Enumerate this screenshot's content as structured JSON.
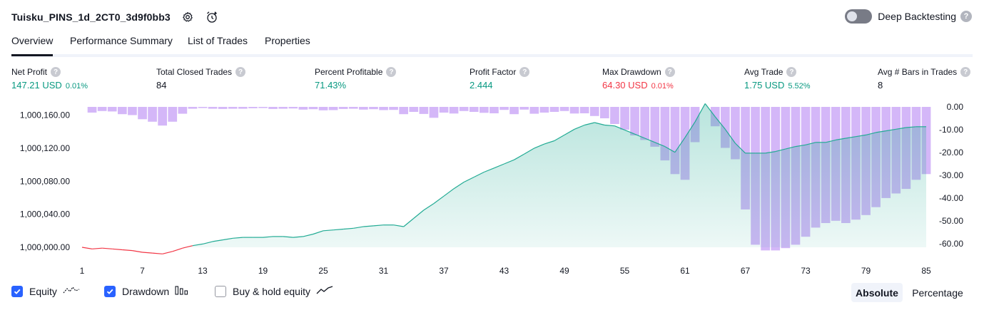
{
  "header": {
    "title": "Tuisku_PINS_1d_2CT0_3d9f0bb3",
    "deep_backtesting_label": "Deep Backtesting",
    "help_glyph": "?"
  },
  "tabs": [
    {
      "label": "Overview",
      "active": true
    },
    {
      "label": "Performance Summary",
      "active": false
    },
    {
      "label": "List of Trades",
      "active": false
    },
    {
      "label": "Properties",
      "active": false
    }
  ],
  "metrics": {
    "net_profit": {
      "label": "Net Profit",
      "value": "147.21 USD",
      "pct": "0.01%"
    },
    "total_closed_trades": {
      "label": "Total Closed Trades",
      "value": "84"
    },
    "percent_profitable": {
      "label": "Percent Profitable",
      "value": "71.43%"
    },
    "profit_factor": {
      "label": "Profit Factor",
      "value": "2.444"
    },
    "max_drawdown": {
      "label": "Max Drawdown",
      "value": "64.30 USD",
      "pct": "0.01%"
    },
    "avg_trade": {
      "label": "Avg Trade",
      "value": "1.75 USD",
      "pct": "5.52%"
    },
    "avg_bars": {
      "label": "Avg # Bars in Trades",
      "value": "8"
    }
  },
  "legend": {
    "equity": {
      "label": "Equity",
      "checked": true
    },
    "drawdown": {
      "label": "Drawdown",
      "checked": true
    },
    "buy_hold": {
      "label": "Buy & hold equity",
      "checked": false
    }
  },
  "view_toggle": {
    "absolute": "Absolute",
    "percentage": "Percentage",
    "selected": "Absolute"
  },
  "colors": {
    "positive": "#089981",
    "negative": "#f23645",
    "equity_line_up": "#22ab94",
    "equity_line_down": "#f23645",
    "drawdown_bar": "#c59ff5",
    "checkbox": "#2962ff"
  },
  "chart_data": {
    "type": "area",
    "x_ticks": [
      "1",
      "7",
      "13",
      "19",
      "25",
      "31",
      "37",
      "43",
      "49",
      "55",
      "61",
      "67",
      "73",
      "79",
      "85"
    ],
    "x_range": [
      1,
      85
    ],
    "y_left": {
      "ticks": [
        "1,000,000.00",
        "1,000,040.00",
        "1,000,080.00",
        "1,000,120.00",
        "1,000,160.00"
      ],
      "range": [
        1000000,
        1000170
      ]
    },
    "y_right": {
      "ticks": [
        "0.00",
        "-10.00",
        "-20.00",
        "-30.00",
        "-40.00",
        "-50.00",
        "-60.00"
      ],
      "range": [
        -61,
        0
      ]
    },
    "series": [
      {
        "name": "Equity",
        "x": [
          1,
          2,
          3,
          4,
          5,
          6,
          7,
          8,
          9,
          10,
          11,
          12,
          13,
          14,
          15,
          16,
          17,
          18,
          19,
          20,
          21,
          22,
          23,
          24,
          25,
          26,
          27,
          28,
          29,
          30,
          31,
          32,
          33,
          34,
          35,
          36,
          37,
          38,
          39,
          40,
          41,
          42,
          43,
          44,
          45,
          46,
          47,
          48,
          49,
          50,
          51,
          52,
          53,
          54,
          55,
          56,
          57,
          58,
          59,
          60,
          61,
          62,
          63,
          64,
          65,
          66,
          67,
          68,
          69,
          70,
          71,
          72,
          73,
          74,
          75,
          76,
          77,
          78,
          79,
          80,
          81,
          82,
          83,
          84,
          85
        ],
        "values": [
          1000000,
          999998,
          999999,
          999998,
          999997,
          999996,
          999994,
          999993,
          999992,
          999995,
          999999,
          1000002,
          1000004,
          1000007,
          1000009,
          1000011,
          1000012,
          1000012,
          1000012,
          1000013,
          1000013,
          1000012,
          1000013,
          1000016,
          1000020,
          1000021,
          1000022,
          1000023,
          1000025,
          1000026,
          1000027,
          1000027,
          1000025,
          1000035,
          1000045,
          1000053,
          1000062,
          1000071,
          1000079,
          1000085,
          1000091,
          1000096,
          1000101,
          1000106,
          1000113,
          1000120,
          1000125,
          1000129,
          1000136,
          1000143,
          1000148,
          1000151,
          1000148,
          1000147,
          1000142,
          1000137,
          1000132,
          1000127,
          1000122,
          1000115,
          1000133,
          1000152,
          1000174,
          1000158,
          1000143,
          1000126,
          1000114,
          1000114,
          1000114,
          1000116,
          1000119,
          1000122,
          1000124,
          1000127,
          1000127,
          1000130,
          1000132,
          1000134,
          1000136,
          1000139,
          1000141,
          1000143,
          1000145,
          1000146,
          1000146
        ]
      },
      {
        "name": "Drawdown",
        "x": [
          1,
          2,
          3,
          4,
          5,
          6,
          7,
          8,
          9,
          10,
          11,
          12,
          13,
          14,
          15,
          16,
          17,
          18,
          19,
          20,
          21,
          22,
          23,
          24,
          25,
          26,
          27,
          28,
          29,
          30,
          31,
          32,
          33,
          34,
          35,
          36,
          37,
          38,
          39,
          40,
          41,
          42,
          43,
          44,
          45,
          46,
          47,
          48,
          49,
          50,
          51,
          52,
          53,
          54,
          55,
          56,
          57,
          58,
          59,
          60,
          61,
          62,
          63,
          64,
          65,
          66,
          67,
          68,
          69,
          70,
          71,
          72,
          73,
          74,
          75,
          76,
          77,
          78,
          79,
          80,
          81,
          82,
          83,
          84,
          85
        ],
        "values": [
          0,
          -2.5,
          -1.8,
          -2.0,
          -3.2,
          -3.6,
          -5.4,
          -6.5,
          -8.2,
          -6.5,
          -3.0,
          -0.8,
          -0.5,
          -0.8,
          -0.9,
          -0.8,
          -0.8,
          -0.6,
          -0.5,
          -0.9,
          -0.8,
          -0.7,
          -1.2,
          -1.0,
          -1.5,
          -1.4,
          -0.9,
          -0.8,
          -1.2,
          -1.0,
          -1.4,
          -1.3,
          -3.2,
          -2.2,
          -3.1,
          -4.8,
          -2.5,
          -2.9,
          -1.8,
          -2.2,
          -2.6,
          -2.8,
          -1.3,
          -3.2,
          -1.2,
          -3.0,
          -2.5,
          -2.2,
          -1.8,
          -2.9,
          -2.8,
          -4.0,
          -5.0,
          -7.5,
          -10.0,
          -12.5,
          -14.5,
          -17.5,
          -23.5,
          -29.5,
          -32.0,
          -15.5,
          0,
          -8.5,
          -18.0,
          -23.0,
          -45.0,
          -60.5,
          -63.0,
          -63.0,
          -62.0,
          -60.5,
          -57.0,
          -53.0,
          -51.0,
          -50.0,
          -51.0,
          -49.5,
          -47.5,
          -44.0,
          -40.0,
          -38.0,
          -36.0,
          -32.0,
          -29.5
        ]
      }
    ]
  }
}
